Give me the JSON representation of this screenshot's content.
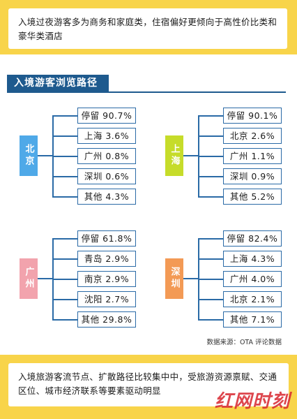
{
  "header": {
    "text": "入境过夜游客多为商务和家庭类，住宿偏好更倾向于高性价比类和豪华类酒店"
  },
  "section_title": "入境游客浏览路径",
  "colors": {
    "banner": "#f8d44a",
    "navy": "#1e5a8e",
    "beijing": "#4fa9e8",
    "shanghai": "#c6dc2a",
    "guangzhou": "#f2a3ad",
    "shenzhen": "#f39a55"
  },
  "cities": [
    {
      "name": "北京",
      "items": [
        "停留 90.7%",
        "上海 3.6%",
        "广州 0.8%",
        "深圳 0.6%",
        "其他 4.3%"
      ]
    },
    {
      "name": "上海",
      "items": [
        "停留 90.1%",
        "北京 2.6%",
        "广州 1.1%",
        "深圳 0.9%",
        "其他 5.2%"
      ]
    },
    {
      "name": "广州",
      "items": [
        "停留 61.8%",
        "青岛 2.9%",
        "南京 2.9%",
        "沈阳 2.7%",
        "其他 29.8%"
      ]
    },
    {
      "name": "深圳",
      "items": [
        "停留 82.4%",
        "上海 4.3%",
        "广州 4.0%",
        "北京 2.1%",
        "其他 7.1%"
      ]
    }
  ],
  "source": "数据来源：OTA 评论数据",
  "footer": {
    "text": "入境旅游客流节点、扩散路径比较集中中，受旅游资源禀赋、交通区位、城市经济联系等要素驱动明显"
  },
  "watermark": "红网时刻"
}
